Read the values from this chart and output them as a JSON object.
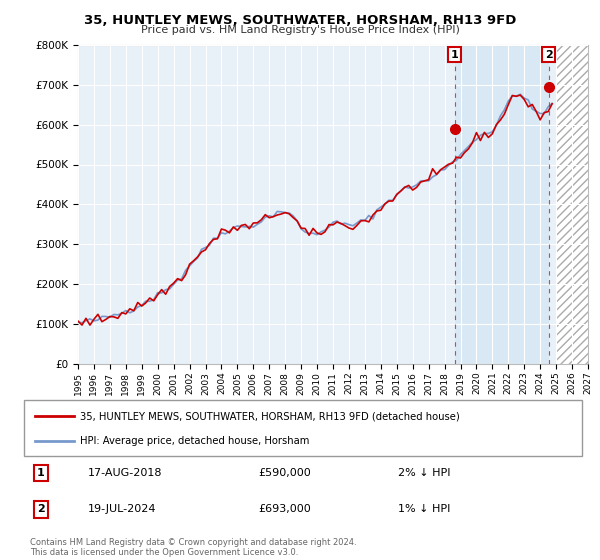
{
  "title": "35, HUNTLEY MEWS, SOUTHWATER, HORSHAM, RH13 9FD",
  "subtitle": "Price paid vs. HM Land Registry's House Price Index (HPI)",
  "legend_line1": "35, HUNTLEY MEWS, SOUTHWATER, HORSHAM, RH13 9FD (detached house)",
  "legend_line2": "HPI: Average price, detached house, Horsham",
  "transaction1_label": "1",
  "transaction1_date": "17-AUG-2018",
  "transaction1_price": "£590,000",
  "transaction1_hpi": "2% ↓ HPI",
  "transaction1_year": 2018.63,
  "transaction1_value": 590000,
  "transaction2_label": "2",
  "transaction2_date": "19-JUL-2024",
  "transaction2_price": "£693,000",
  "transaction2_hpi": "1% ↓ HPI",
  "transaction2_year": 2024.54,
  "transaction2_value": 693000,
  "ylim": [
    0,
    800000
  ],
  "xlim_left": 1995,
  "xlim_right": 2027,
  "future_start": 2025.0,
  "plot_bg": "#e8f0f8",
  "between_bg": "#d8e8f4",
  "future_hatch_color": "#aaaaaa",
  "grid_color": "#ffffff",
  "red_color": "#cc0000",
  "blue_color": "#7799cc",
  "footnote": "Contains HM Land Registry data © Crown copyright and database right 2024.\nThis data is licensed under the Open Government Licence v3.0.",
  "hpi_years": [
    1995.0,
    1995.25,
    1995.5,
    1995.75,
    1996.0,
    1996.25,
    1996.5,
    1996.75,
    1997.0,
    1997.25,
    1997.5,
    1997.75,
    1998.0,
    1998.25,
    1998.5,
    1998.75,
    1999.0,
    1999.25,
    1999.5,
    1999.75,
    2000.0,
    2000.25,
    2000.5,
    2000.75,
    2001.0,
    2001.25,
    2001.5,
    2001.75,
    2002.0,
    2002.25,
    2002.5,
    2002.75,
    2003.0,
    2003.25,
    2003.5,
    2003.75,
    2004.0,
    2004.25,
    2004.5,
    2004.75,
    2005.0,
    2005.25,
    2005.5,
    2005.75,
    2006.0,
    2006.25,
    2006.5,
    2006.75,
    2007.0,
    2007.25,
    2007.5,
    2007.75,
    2008.0,
    2008.25,
    2008.5,
    2008.75,
    2009.0,
    2009.25,
    2009.5,
    2009.75,
    2010.0,
    2010.25,
    2010.5,
    2010.75,
    2011.0,
    2011.25,
    2011.5,
    2011.75,
    2012.0,
    2012.25,
    2012.5,
    2012.75,
    2013.0,
    2013.25,
    2013.5,
    2013.75,
    2014.0,
    2014.25,
    2014.5,
    2014.75,
    2015.0,
    2015.25,
    2015.5,
    2015.75,
    2016.0,
    2016.25,
    2016.5,
    2016.75,
    2017.0,
    2017.25,
    2017.5,
    2017.75,
    2018.0,
    2018.25,
    2018.5,
    2018.75,
    2019.0,
    2019.25,
    2019.5,
    2019.75,
    2020.0,
    2020.25,
    2020.5,
    2020.75,
    2021.0,
    2021.25,
    2021.5,
    2021.75,
    2022.0,
    2022.25,
    2022.5,
    2022.75,
    2023.0,
    2023.25,
    2023.5,
    2023.75,
    2024.0,
    2024.25,
    2024.5,
    2024.75
  ],
  "hpi_values": [
    103000,
    104000,
    106000,
    107000,
    109000,
    111000,
    113000,
    116000,
    119000,
    122000,
    125000,
    129000,
    133000,
    136000,
    140000,
    145000,
    151000,
    156000,
    161000,
    167000,
    173000,
    179000,
    186000,
    194000,
    202000,
    210000,
    218000,
    233000,
    248000,
    258000,
    268000,
    280000,
    292000,
    302000,
    312000,
    320000,
    328000,
    334000,
    338000,
    341000,
    343000,
    344000,
    344000,
    346000,
    349000,
    353000,
    358000,
    364000,
    370000,
    376000,
    381000,
    383000,
    382000,
    376000,
    367000,
    355000,
    342000,
    332000,
    326000,
    324000,
    326000,
    332000,
    340000,
    348000,
    352000,
    353000,
    351000,
    349000,
    348000,
    349000,
    352000,
    355000,
    360000,
    366000,
    374000,
    383000,
    393000,
    402000,
    410000,
    418000,
    425000,
    432000,
    438000,
    443000,
    447000,
    451000,
    455000,
    458000,
    461000,
    467000,
    474000,
    482000,
    490000,
    499000,
    508000,
    516000,
    524000,
    534000,
    545000,
    557000,
    568000,
    575000,
    579000,
    581000,
    583000,
    596000,
    614000,
    636000,
    658000,
    672000,
    679000,
    676000,
    666000,
    652000,
    640000,
    632000,
    628000,
    632000,
    640000,
    650000
  ]
}
